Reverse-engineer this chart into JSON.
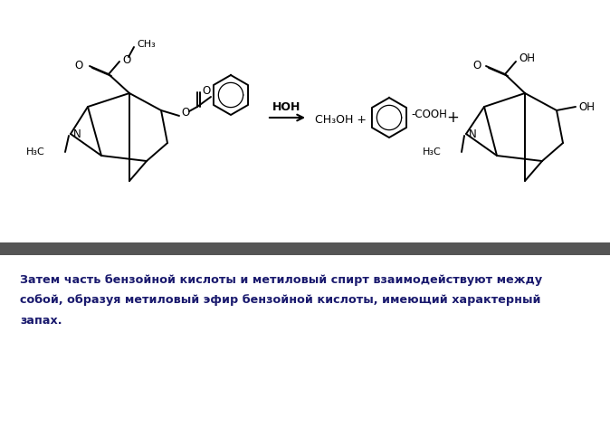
{
  "bg_color": "#ffffff",
  "separator_color": "#555555",
  "text_color": "#1a1a6e",
  "text_line1": "Затем часть бензойной кислоты и метиловый спирт взаимодействуют между",
  "text_line2": "собой, образуя метиловый эфир бензойной кислоты, имеющий характерный",
  "text_line3": "запах.",
  "reaction_label": "НОН",
  "figsize": [
    6.74,
    4.83
  ],
  "dpi": 100
}
